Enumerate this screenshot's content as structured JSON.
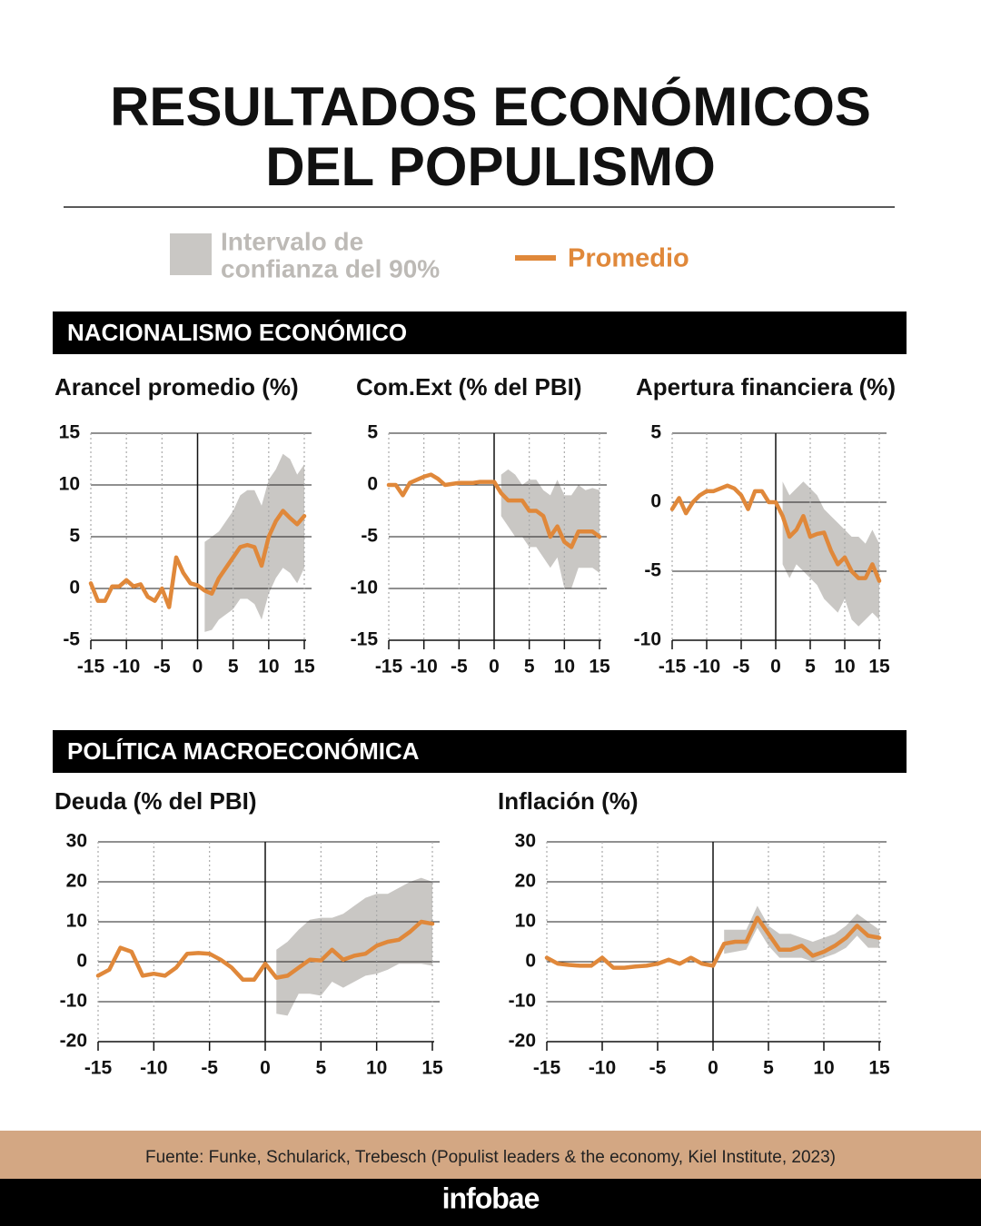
{
  "title": [
    "RESULTADOS ECONÓMICOS",
    "DEL POPULISMO"
  ],
  "legend": {
    "band": {
      "label": [
        "Intervalo de",
        "confianza del 90%"
      ],
      "color": "#c9c7c4"
    },
    "line": {
      "label": "Promedio",
      "color": "#e0883a"
    }
  },
  "sections": [
    "NACIONALISMO ECONÓMICO",
    "POLÍTICA MACROECONÓMICA"
  ],
  "chart_data": [
    {
      "type": "line",
      "title": "Arancel promedio (%)",
      "x": [
        -15,
        -14,
        -13,
        -12,
        -11,
        -10,
        -9,
        -8,
        -7,
        -6,
        -5,
        -4,
        -3,
        -2,
        -1,
        0,
        1,
        2,
        3,
        4,
        5,
        6,
        7,
        8,
        9,
        10,
        11,
        12,
        13,
        14,
        15
      ],
      "xlim": [
        -15,
        15
      ],
      "xticks": [
        -15,
        -10,
        -5,
        0,
        5,
        10,
        15
      ],
      "ylim": [
        -5,
        15
      ],
      "yticks": [
        -5,
        0,
        5,
        10,
        15
      ],
      "values": [
        0.5,
        -1.2,
        -1.2,
        0.2,
        0.2,
        0.8,
        0.2,
        0.4,
        -0.8,
        -1.2,
        0,
        -1.8,
        3,
        1.5,
        0.5,
        0.3,
        -0.2,
        -0.5,
        1,
        2,
        3,
        4,
        4.2,
        4,
        2.2,
        5,
        6.5,
        7.5,
        6.8,
        6.2,
        7
      ],
      "upper": [
        null,
        null,
        null,
        null,
        null,
        null,
        null,
        null,
        null,
        null,
        null,
        null,
        null,
        null,
        null,
        null,
        4.5,
        5,
        5.5,
        6.5,
        7.5,
        9,
        9.5,
        9.5,
        8,
        10.5,
        11.5,
        13,
        12.5,
        11,
        12
      ],
      "lower": [
        null,
        null,
        null,
        null,
        null,
        null,
        null,
        null,
        null,
        null,
        null,
        null,
        null,
        null,
        null,
        null,
        -4.2,
        -4,
        -3,
        -2.5,
        -2,
        -1,
        -1,
        -1.5,
        -3,
        -0.5,
        1,
        2,
        1.5,
        0.5,
        2
      ]
    },
    {
      "type": "line",
      "title": "Com.Ext (% del PBI)",
      "x": [
        -15,
        -14,
        -13,
        -12,
        -11,
        -10,
        -9,
        -8,
        -7,
        -6,
        -5,
        -4,
        -3,
        -2,
        -1,
        0,
        1,
        2,
        3,
        4,
        5,
        6,
        7,
        8,
        9,
        10,
        11,
        12,
        13,
        14,
        15
      ],
      "xlim": [
        -15,
        15
      ],
      "xticks": [
        -15,
        -10,
        -5,
        0,
        5,
        10,
        15
      ],
      "ylim": [
        -15,
        5
      ],
      "yticks": [
        -15,
        -10,
        -5,
        0,
        5
      ],
      "values": [
        0,
        0,
        -1,
        0.2,
        0.5,
        0.8,
        1,
        0.6,
        0,
        0.1,
        0.2,
        0.2,
        0.2,
        0.3,
        0.3,
        0.3,
        -0.8,
        -1.5,
        -1.5,
        -1.5,
        -2.5,
        -2.5,
        -3,
        -5,
        -4,
        -5.5,
        -6,
        -4.5,
        -4.5,
        -4.5,
        -5
      ],
      "upper": [
        null,
        null,
        null,
        null,
        null,
        null,
        null,
        null,
        null,
        null,
        null,
        null,
        null,
        null,
        null,
        null,
        1,
        1.5,
        1,
        0,
        0.5,
        0.5,
        -0.5,
        -1,
        0.5,
        -1,
        -1,
        0,
        -0.5,
        -0.3,
        -0.5
      ],
      "lower": [
        null,
        null,
        null,
        null,
        null,
        null,
        null,
        null,
        null,
        null,
        null,
        null,
        null,
        null,
        null,
        null,
        -3,
        -4,
        -5,
        -5,
        -6,
        -6,
        -7,
        -8,
        -7,
        -10,
        -10,
        -8,
        -8,
        -8,
        -8.5
      ]
    },
    {
      "type": "line",
      "title": "Apertura financiera (%)",
      "x": [
        -15,
        -14,
        -13,
        -12,
        -11,
        -10,
        -9,
        -8,
        -7,
        -6,
        -5,
        -4,
        -3,
        -2,
        -1,
        0,
        1,
        2,
        3,
        4,
        5,
        6,
        7,
        8,
        9,
        10,
        11,
        12,
        13,
        14,
        15
      ],
      "xlim": [
        -15,
        15
      ],
      "xticks": [
        -15,
        -10,
        -5,
        0,
        5,
        10,
        15
      ],
      "ylim": [
        -10,
        5
      ],
      "yticks": [
        -10,
        -5,
        0,
        5
      ],
      "values": [
        -0.5,
        0.3,
        -0.8,
        0,
        0.5,
        0.8,
        0.8,
        1,
        1.2,
        1,
        0.5,
        -0.5,
        0.8,
        0.8,
        0,
        0,
        -1,
        -2.5,
        -2,
        -1,
        -2.5,
        -2.3,
        -2.2,
        -3.5,
        -4.5,
        -4,
        -5,
        -5.5,
        -5.5,
        -4.5,
        -5.7
      ],
      "upper": [
        null,
        null,
        null,
        null,
        null,
        null,
        null,
        null,
        null,
        null,
        null,
        null,
        null,
        null,
        null,
        null,
        1.5,
        0.5,
        1,
        1.5,
        1,
        0.5,
        -0.5,
        -1,
        -1.5,
        -2,
        -2.5,
        -2.5,
        -3,
        -2,
        -3
      ],
      "lower": [
        null,
        null,
        null,
        null,
        null,
        null,
        null,
        null,
        null,
        null,
        null,
        null,
        null,
        null,
        null,
        null,
        -4.5,
        -5.5,
        -4.5,
        -5,
        -5.5,
        -6,
        -7,
        -7.5,
        -8,
        -7,
        -8.5,
        -9,
        -8.5,
        -8,
        -8.5
      ]
    },
    {
      "type": "line",
      "title": "Deuda (% del PBI)",
      "x": [
        -15,
        -14,
        -13,
        -12,
        -11,
        -10,
        -9,
        -8,
        -7,
        -6,
        -5,
        -4,
        -3,
        -2,
        -1,
        0,
        1,
        2,
        3,
        4,
        5,
        6,
        7,
        8,
        9,
        10,
        11,
        12,
        13,
        14,
        15
      ],
      "xlim": [
        -15,
        15
      ],
      "xticks": [
        -15,
        -10,
        -5,
        0,
        5,
        10,
        15
      ],
      "ylim": [
        -20,
        30
      ],
      "yticks": [
        -20,
        -10,
        0,
        10,
        20,
        30
      ],
      "values": [
        -3.5,
        -2,
        3.5,
        2.5,
        -3.5,
        -3,
        -3.5,
        -1.5,
        2,
        2.2,
        2,
        0.5,
        -1.5,
        -4.5,
        -4.5,
        -0.5,
        -4,
        -3.5,
        -1.5,
        0.5,
        0.3,
        3,
        0.5,
        1.5,
        2,
        4,
        5,
        5.5,
        7.5,
        10,
        9.5
      ],
      "upper": [
        null,
        null,
        null,
        null,
        null,
        null,
        null,
        null,
        null,
        null,
        null,
        null,
        null,
        null,
        null,
        null,
        3,
        5,
        8,
        10.5,
        11,
        11,
        12,
        14,
        16,
        17,
        17,
        18.5,
        20,
        21,
        20
      ],
      "lower": [
        null,
        null,
        null,
        null,
        null,
        null,
        null,
        null,
        null,
        null,
        null,
        null,
        null,
        null,
        null,
        null,
        -13,
        -13.5,
        -8,
        -8,
        -8.5,
        -5,
        -6.5,
        -5,
        -3.5,
        -3,
        -2,
        -0.5,
        -0.5,
        -0.5,
        -1
      ]
    },
    {
      "type": "line",
      "title": "Inflación (%)",
      "x": [
        -15,
        -14,
        -13,
        -12,
        -11,
        -10,
        -9,
        -8,
        -7,
        -6,
        -5,
        -4,
        -3,
        -2,
        -1,
        0,
        1,
        2,
        3,
        4,
        5,
        6,
        7,
        8,
        9,
        10,
        11,
        12,
        13,
        14,
        15
      ],
      "xlim": [
        -15,
        15
      ],
      "xticks": [
        -15,
        -10,
        -5,
        0,
        5,
        10,
        15
      ],
      "ylim": [
        -20,
        30
      ],
      "yticks": [
        -20,
        -10,
        0,
        10,
        20,
        30
      ],
      "values": [
        1,
        -0.5,
        -0.8,
        -1,
        -1,
        1,
        -1.5,
        -1.5,
        -1.2,
        -1,
        -0.5,
        0.5,
        -0.5,
        1,
        -0.5,
        -1,
        4.5,
        5,
        5,
        11,
        7,
        3,
        3,
        4,
        1.5,
        2.5,
        4,
        6,
        9,
        6.5,
        6
      ],
      "upper": [
        null,
        null,
        null,
        null,
        null,
        null,
        null,
        null,
        null,
        null,
        null,
        null,
        null,
        null,
        null,
        null,
        8,
        8,
        8,
        14,
        9,
        7,
        7,
        6,
        5,
        6,
        7,
        9,
        12,
        10,
        8
      ],
      "lower": [
        null,
        null,
        null,
        null,
        null,
        null,
        null,
        null,
        null,
        null,
        null,
        null,
        null,
        null,
        null,
        null,
        2,
        2.5,
        3,
        8.5,
        4,
        1,
        1,
        1,
        0,
        1,
        2,
        3.5,
        6.5,
        3.5,
        3.5
      ]
    }
  ],
  "source": "Fuente: Funke, Schularick, Trebesch (Populist leaders & the economy, Kiel Institute, 2023)",
  "brand": "infobae"
}
